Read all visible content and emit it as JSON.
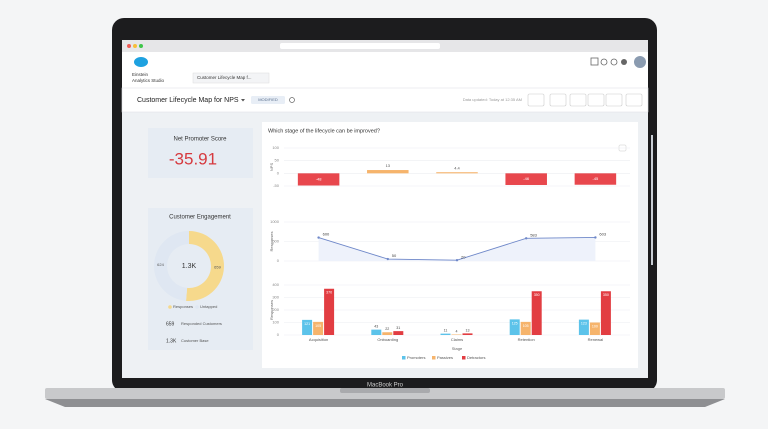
{
  "laptop": {
    "model": "MacBook Pro"
  },
  "app": {
    "name_lines": [
      "Einstein",
      "Analytics Studio"
    ],
    "tab": "Customer Lifecycle Map f..."
  },
  "toolbar": {
    "title": "Customer Lifecycle Map for NPS",
    "badge": "MODIFIED",
    "updated": "Data updated: Today at 12:35 AM"
  },
  "nps_card": {
    "title": "Net Promoter Score",
    "value": "-35.91"
  },
  "engagement_card": {
    "title": "Customer Engagement",
    "stats": [
      {
        "value": "659",
        "label": "Responded Customers"
      },
      {
        "value": "1.3K",
        "label": "Customer Base"
      }
    ]
  },
  "panel": {
    "title": "Which stage of the lifecycle can be improved?"
  },
  "chart_data": [
    {
      "type": "donut",
      "categories": [
        "Responses",
        "Untapped"
      ],
      "values": [
        659,
        624
      ],
      "colors": [
        "#f6d98c",
        "#dfe7f2"
      ],
      "total_label": "1.3K"
    },
    {
      "type": "bar",
      "y_label": "NPS",
      "values": [
        -48,
        13,
        4.4,
        -46,
        -45
      ],
      "colors": [
        "#e8474d",
        "#f6b46c",
        "#f6b46c",
        "#e8474d",
        "#e8474d"
      ],
      "ylim": [
        -50,
        100
      ],
      "yticks": [
        -50,
        0,
        50,
        100
      ],
      "grid": true
    },
    {
      "type": "line",
      "y_label": "Responses",
      "values": [
        600,
        50,
        20,
        583,
        603
      ],
      "color": "#6f88c9",
      "ylim": [
        0,
        1000
      ],
      "yticks": [
        0,
        500,
        1000
      ],
      "grid": true
    },
    {
      "type": "grouped-bar",
      "y_label": "Responses",
      "x_label": "Stage",
      "categories": [
        "Acquisition",
        "Onboarding",
        "Claims",
        "Retention",
        "Renewal"
      ],
      "series": [
        {
          "name": "Promoters",
          "color": "#5cc3ea",
          "values": [
            121,
            43,
            11,
            125,
            123
          ]
        },
        {
          "name": "Passives",
          "color": "#f6b46c",
          "values": [
            105,
            22,
            4,
            105,
            100
          ]
        },
        {
          "name": "Detractors",
          "color": "#e23d42",
          "values": [
            370,
            31,
            13,
            350,
            350
          ]
        }
      ],
      "ylim": [
        0,
        400
      ],
      "yticks": [
        0,
        100,
        200,
        300,
        400
      ],
      "grid": true
    }
  ]
}
